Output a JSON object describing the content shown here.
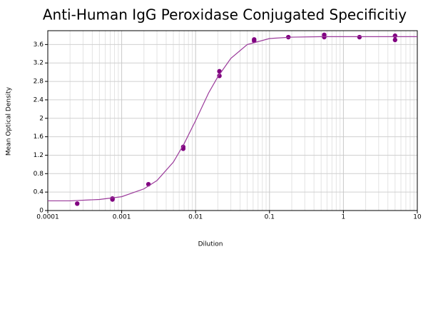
{
  "chart_data": {
    "type": "scatter",
    "title": "Anti-Human IgG Peroxidase Conjugated Specificitiy",
    "x_label": "Dilution",
    "y_label": "Mean Optical Density",
    "log_x": true,
    "grid": true,
    "minor_grid": true,
    "xlim": [
      0.0001,
      10
    ],
    "xticks": [
      0.0001,
      0.001,
      0.01,
      0.1,
      1,
      10
    ],
    "ylim": [
      0,
      3.9
    ],
    "yticks": [
      0,
      0.4,
      0.8,
      1.2,
      1.6,
      2,
      2.4,
      2.8,
      3.2,
      3.6
    ],
    "series": [
      {
        "type": "scatter",
        "color": "#800080",
        "x": [
          0.00025,
          0.00075,
          0.00075,
          0.0023,
          0.0068,
          0.0068,
          0.021,
          0.021,
          0.062,
          0.062,
          0.18,
          0.55,
          0.55,
          1.65,
          5,
          5
        ],
        "values": [
          0.15,
          0.24,
          0.26,
          0.57,
          1.34,
          1.38,
          2.92,
          3.02,
          3.68,
          3.71,
          3.76,
          3.76,
          3.81,
          3.76,
          3.7,
          3.79
        ]
      },
      {
        "type": "line",
        "color": "#9b3a9b",
        "x": [
          0.0001,
          0.0002,
          0.0005,
          0.001,
          0.002,
          0.003,
          0.005,
          0.007,
          0.01,
          0.015,
          0.02,
          0.03,
          0.05,
          0.1,
          0.2,
          0.5,
          1,
          2,
          5,
          10
        ],
        "values": [
          0.21,
          0.21,
          0.24,
          0.3,
          0.47,
          0.65,
          1.05,
          1.45,
          1.95,
          2.55,
          2.9,
          3.3,
          3.6,
          3.73,
          3.76,
          3.77,
          3.77,
          3.77,
          3.77,
          3.77
        ]
      }
    ]
  }
}
